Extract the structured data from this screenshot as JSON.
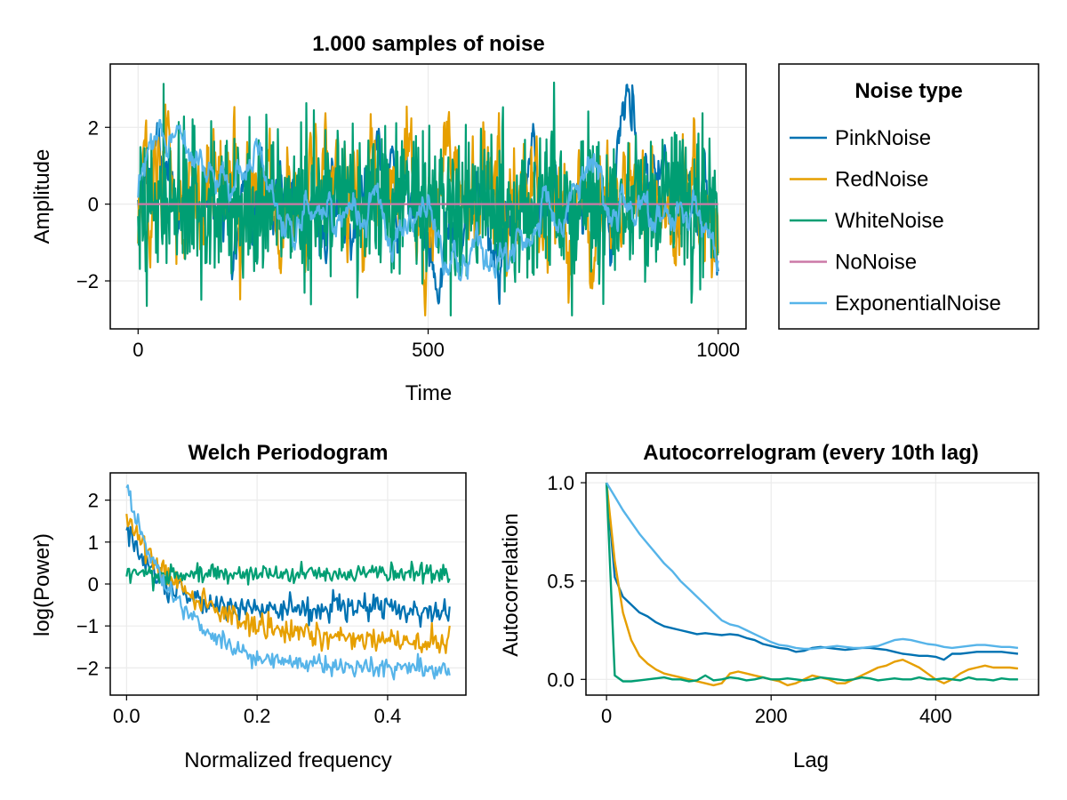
{
  "chart_data": [
    {
      "type": "line",
      "title": "1.000 samples of noise",
      "xlabel": "Time",
      "ylabel": "Amplitude",
      "xlim": [
        -48,
        1048
      ],
      "ylim": [
        -3.25,
        3.65
      ],
      "xticks": [
        0,
        500,
        1000
      ],
      "xtick_labels": [
        "0",
        "500",
        "1000"
      ],
      "yticks": [
        -2,
        0,
        2
      ],
      "ytick_labels": [
        "−2",
        "0",
        "2"
      ],
      "grid": true,
      "n_samples": 1000,
      "series": [
        {
          "name": "PinkNoise",
          "color": "#0072B2",
          "std": 1.0,
          "rho": 0.95,
          "seed": 11
        },
        {
          "name": "RedNoise",
          "color": "#E69F00",
          "std": 1.0,
          "rho": 0.82,
          "seed": 23
        },
        {
          "name": "WhiteNoise",
          "color": "#009E73",
          "std": 1.0,
          "rho": 0.0,
          "seed": 37
        },
        {
          "name": "NoNoise",
          "color": "#CC79A7",
          "std": 0.0,
          "rho": 0.0,
          "seed": 0
        },
        {
          "name": "ExponentialNoise",
          "color": "#56B4E9",
          "std": 0.85,
          "rho": 0.985,
          "seed": 51
        }
      ]
    },
    {
      "type": "line",
      "title": "Welch Periodogram",
      "xlabel": "Normalized frequency",
      "ylabel": "log(Power)",
      "xlim": [
        -0.025,
        0.52
      ],
      "ylim": [
        -2.65,
        2.65
      ],
      "xticks": [
        0.0,
        0.2,
        0.4
      ],
      "xtick_labels": [
        "0.0",
        "0.2",
        "0.4"
      ],
      "yticks": [
        -2,
        -1,
        0,
        1,
        2
      ],
      "ytick_labels": [
        "−2",
        "−1",
        "0",
        "1",
        "2"
      ],
      "grid": true,
      "freq_range": [
        0.0,
        0.495
      ],
      "series": [
        {
          "name": "PinkNoise",
          "color": "#0072B2",
          "base": -0.6,
          "amp": 2.0,
          "decay": 0.05,
          "noise": 0.15
        },
        {
          "name": "RedNoise",
          "color": "#E69F00",
          "base": -1.4,
          "amp": 3.0,
          "decay": 0.1,
          "noise": 0.15
        },
        {
          "name": "WhiteNoise",
          "color": "#009E73",
          "base": 0.25,
          "amp": 0.0,
          "decay": 0.1,
          "noise": 0.12
        },
        {
          "name": "ExponentialNoise",
          "color": "#56B4E9",
          "base": -2.05,
          "amp": 4.3,
          "decay": 0.08,
          "noise": 0.13
        }
      ]
    },
    {
      "type": "line",
      "title": "Autocorrelogram (every 10th lag)",
      "xlabel": "Lag",
      "ylabel": "Autocorrelation",
      "xlim": [
        -25,
        525
      ],
      "ylim": [
        -0.08,
        1.05
      ],
      "xticks": [
        0,
        200,
        400
      ],
      "xtick_labels": [
        "0",
        "200",
        "400"
      ],
      "yticks": [
        0.0,
        0.5,
        1.0
      ],
      "ytick_labels": [
        "0.0",
        "0.5",
        "1.0"
      ],
      "grid": true,
      "x": [
        0,
        10,
        20,
        30,
        40,
        50,
        60,
        70,
        80,
        90,
        100,
        110,
        120,
        130,
        140,
        150,
        160,
        170,
        180,
        190,
        200,
        210,
        220,
        230,
        240,
        250,
        260,
        270,
        280,
        290,
        300,
        310,
        320,
        330,
        340,
        350,
        360,
        370,
        380,
        390,
        400,
        410,
        420,
        430,
        440,
        450,
        460,
        470,
        480,
        490,
        500
      ],
      "series": [
        {
          "name": "PinkNoise",
          "color": "#0072B2",
          "values": [
            1.0,
            0.52,
            0.42,
            0.38,
            0.34,
            0.32,
            0.29,
            0.27,
            0.26,
            0.25,
            0.24,
            0.23,
            0.235,
            0.23,
            0.225,
            0.23,
            0.225,
            0.21,
            0.2,
            0.18,
            0.17,
            0.16,
            0.155,
            0.14,
            0.145,
            0.16,
            0.165,
            0.16,
            0.155,
            0.15,
            0.155,
            0.16,
            0.16,
            0.155,
            0.15,
            0.14,
            0.13,
            0.125,
            0.12,
            0.12,
            0.115,
            0.1,
            0.13,
            0.13,
            0.135,
            0.14,
            0.14,
            0.14,
            0.14,
            0.135,
            0.13
          ]
        },
        {
          "name": "RedNoise",
          "color": "#E69F00",
          "values": [
            1.0,
            0.6,
            0.34,
            0.2,
            0.12,
            0.08,
            0.05,
            0.03,
            0.02,
            0.01,
            0.0,
            -0.01,
            -0.02,
            -0.03,
            -0.02,
            0.03,
            0.04,
            0.03,
            0.02,
            0.01,
            0.0,
            -0.01,
            -0.03,
            -0.02,
            0.0,
            0.02,
            0.01,
            0.0,
            -0.02,
            -0.02,
            0.0,
            0.02,
            0.04,
            0.06,
            0.07,
            0.09,
            0.1,
            0.08,
            0.06,
            0.03,
            0.0,
            -0.02,
            0.0,
            0.03,
            0.05,
            0.06,
            0.07,
            0.06,
            0.06,
            0.06,
            0.055
          ]
        },
        {
          "name": "WhiteNoise",
          "color": "#009E73",
          "values": [
            1.0,
            0.02,
            -0.01,
            -0.01,
            -0.005,
            0.0,
            0.005,
            0.01,
            0.0,
            0.0,
            -0.01,
            -0.005,
            0.02,
            -0.005,
            0.0,
            0.01,
            0.005,
            -0.005,
            0.0,
            0.01,
            0.0,
            0.0,
            0.005,
            0.0,
            -0.005,
            0.0,
            0.01,
            0.005,
            0.0,
            -0.005,
            0.0,
            0.01,
            0.005,
            -0.005,
            0.0,
            0.005,
            0.0,
            0.0,
            0.01,
            0.0,
            0.0,
            0.005,
            0.0,
            -0.005,
            0.01,
            0.0,
            0.0,
            -0.005,
            0.005,
            0.0,
            0.0
          ]
        },
        {
          "name": "ExponentialNoise",
          "color": "#56B4E9",
          "values": [
            1.0,
            0.93,
            0.86,
            0.8,
            0.74,
            0.69,
            0.64,
            0.59,
            0.55,
            0.5,
            0.46,
            0.42,
            0.38,
            0.34,
            0.3,
            0.28,
            0.27,
            0.25,
            0.23,
            0.21,
            0.19,
            0.175,
            0.17,
            0.16,
            0.155,
            0.155,
            0.16,
            0.165,
            0.17,
            0.165,
            0.16,
            0.16,
            0.165,
            0.17,
            0.185,
            0.2,
            0.205,
            0.2,
            0.19,
            0.18,
            0.175,
            0.165,
            0.16,
            0.165,
            0.17,
            0.175,
            0.175,
            0.17,
            0.165,
            0.165,
            0.16
          ]
        }
      ]
    }
  ],
  "legend": {
    "title": "Noise type",
    "entries": [
      {
        "label": "PinkNoise",
        "color": "#0072B2"
      },
      {
        "label": "RedNoise",
        "color": "#E69F00"
      },
      {
        "label": "WhiteNoise",
        "color": "#009E73"
      },
      {
        "label": "NoNoise",
        "color": "#CC79A7"
      },
      {
        "label": "ExponentialNoise",
        "color": "#56B4E9"
      }
    ]
  }
}
